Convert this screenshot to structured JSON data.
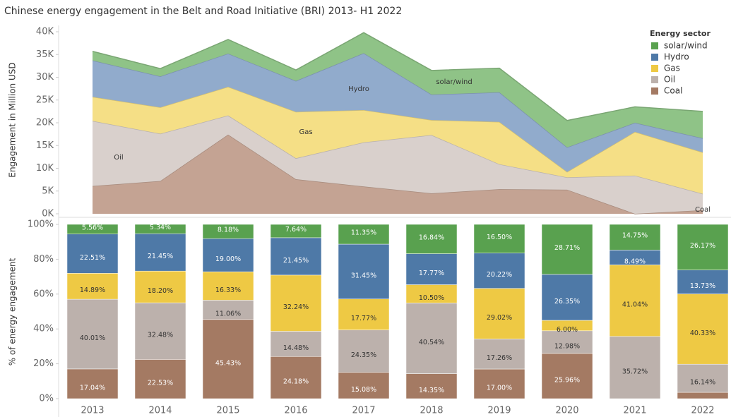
{
  "chart_data": [
    {
      "type": "stacked-area",
      "title": "Chinese energy engagement in the Belt and Road Initiative (BRI) 2013- H1 2022",
      "y_label": "Engagement in Million USD",
      "ylim": [
        0,
        40000
      ],
      "yticks": [
        {
          "value": 0,
          "label": "0K"
        },
        {
          "value": 5000,
          "label": "5K"
        },
        {
          "value": 10000,
          "label": "10K"
        },
        {
          "value": 15000,
          "label": "15K"
        },
        {
          "value": 20000,
          "label": "20K"
        },
        {
          "value": 25000,
          "label": "25K"
        },
        {
          "value": 30000,
          "label": "30K"
        },
        {
          "value": 35000,
          "label": "35K"
        },
        {
          "value": 40000,
          "label": "40K"
        }
      ],
      "legend_title": "Energy sector",
      "legend": "top-right",
      "annotations": [
        "Oil",
        "Gas",
        "Hydro",
        "solar/wind",
        "Coal"
      ],
      "series": [
        {
          "name": "Coal",
          "color": "#c4a393",
          "values": [
            6100,
            7200,
            17400,
            7600,
            6000,
            4500,
            5400,
            5300,
            0,
            800
          ]
        },
        {
          "name": "Oil",
          "color": "#d9d0cc",
          "values": [
            14300,
            10400,
            4200,
            4600,
            9700,
            12800,
            5500,
            2700,
            8400,
            3600
          ]
        },
        {
          "name": "Gas",
          "color": "#f5df86",
          "values": [
            5300,
            5800,
            6300,
            10200,
            7100,
            3300,
            9300,
            1200,
            9600,
            9100
          ]
        },
        {
          "name": "Hydro",
          "color": "#91abcc",
          "values": [
            8000,
            6800,
            7300,
            6800,
            12500,
            5600,
            6500,
            5400,
            2000,
            3100
          ]
        },
        {
          "name": "solar/wind",
          "color": "#8fc387",
          "values": [
            2000,
            1700,
            3100,
            2400,
            4500,
            5300,
            5300,
            5900,
            3500,
            5900
          ]
        }
      ]
    },
    {
      "type": "stacked-bar",
      "y_label": "% of energy engagement",
      "categories": [
        "2013",
        "2014",
        "2015",
        "2016",
        "2017",
        "2018",
        "2019",
        "2020",
        "2021",
        "2022"
      ],
      "ylim": [
        0,
        100
      ],
      "yticks": [
        {
          "value": 0,
          "label": "0%"
        },
        {
          "value": 20,
          "label": "20%"
        },
        {
          "value": 40,
          "label": "40%"
        },
        {
          "value": 60,
          "label": "60%"
        },
        {
          "value": 80,
          "label": "80%"
        },
        {
          "value": 100,
          "label": "100%"
        }
      ],
      "series": [
        {
          "name": "Coal",
          "color": "#a47a63",
          "values": [
            17.04,
            22.53,
            45.43,
            24.18,
            15.08,
            14.35,
            17.0,
            25.96,
            0,
            3.63
          ],
          "value_labels": [
            "17.04%",
            "22.53%",
            "45.43%",
            "24.18%",
            "15.08%",
            "14.35%",
            "17.00%",
            "25.96%",
            null,
            null
          ]
        },
        {
          "name": "Oil",
          "color": "#bcb1ac",
          "values": [
            40.01,
            32.48,
            11.06,
            14.48,
            24.35,
            40.54,
            17.26,
            12.98,
            35.72,
            16.14
          ],
          "value_labels": [
            "40.01%",
            "32.48%",
            "11.06%",
            "14.48%",
            "24.35%",
            "40.54%",
            "17.26%",
            "12.98%",
            "35.72%",
            "16.14%"
          ]
        },
        {
          "name": "Gas",
          "color": "#eec944",
          "values": [
            14.89,
            18.2,
            16.33,
            32.24,
            17.77,
            10.5,
            29.02,
            6.0,
            41.04,
            40.33
          ],
          "value_labels": [
            "14.89%",
            "18.20%",
            "16.33%",
            "32.24%",
            "17.77%",
            "10.50%",
            "29.02%",
            "6.00%",
            "41.04%",
            "40.33%"
          ]
        },
        {
          "name": "Hydro",
          "color": "#4e79a7",
          "values": [
            22.51,
            21.45,
            19.0,
            21.45,
            31.45,
            17.77,
            20.22,
            26.35,
            8.49,
            13.73
          ],
          "value_labels": [
            "22.51%",
            "21.45%",
            "19.00%",
            "21.45%",
            "31.45%",
            "17.77%",
            "20.22%",
            "26.35%",
            "8.49%",
            "13.73%"
          ]
        },
        {
          "name": "solar/wind",
          "color": "#59a14f",
          "values": [
            5.56,
            5.34,
            8.18,
            7.64,
            11.35,
            16.84,
            16.5,
            28.71,
            14.75,
            26.17
          ],
          "value_labels": [
            "5.56%",
            "5.34%",
            "8.18%",
            "7.64%",
            "11.35%",
            "16.84%",
            "16.50%",
            "28.71%",
            "14.75%",
            "26.17%"
          ]
        }
      ]
    }
  ]
}
